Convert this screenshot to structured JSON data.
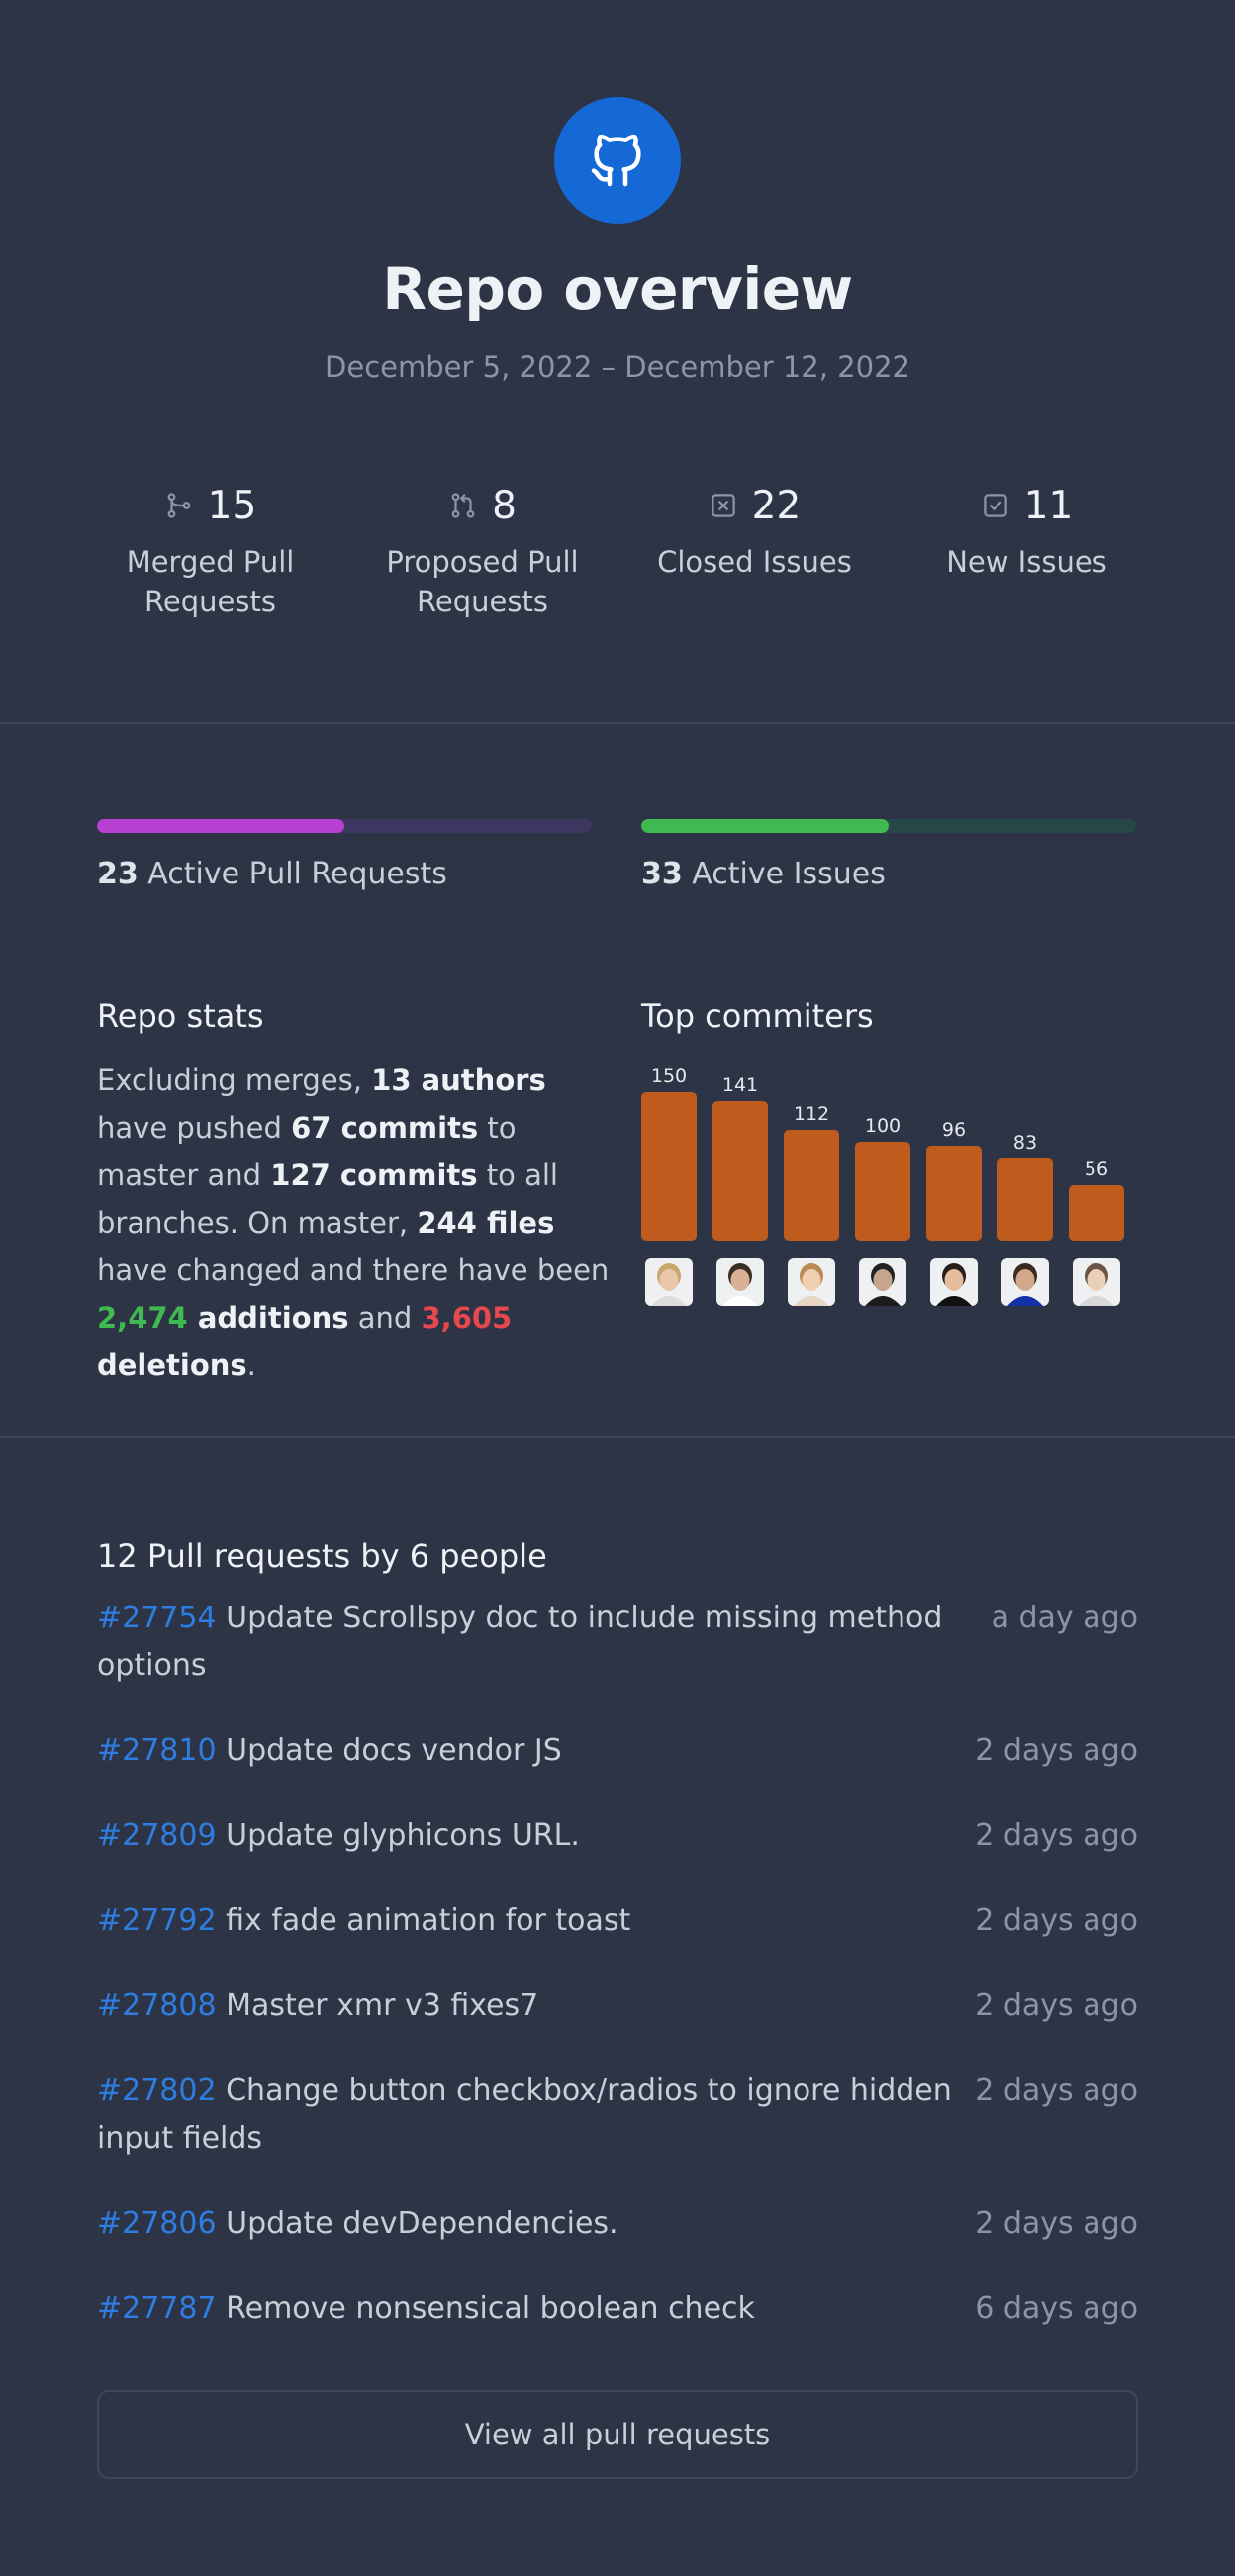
{
  "header": {
    "logo_icon": "github-icon",
    "title": "Repo overview",
    "date_range": "December 5, 2022 – December 12, 2022"
  },
  "kpis": [
    {
      "icon": "merge-icon",
      "value": "15",
      "label": "Merged Pull Requests"
    },
    {
      "icon": "pull-request-icon",
      "value": "8",
      "label": "Proposed Pull Requests"
    },
    {
      "icon": "closed-issue-icon",
      "value": "22",
      "label": "Closed Issues"
    },
    {
      "icon": "new-issue-icon",
      "value": "11",
      "label": "New Issues"
    }
  ],
  "active": {
    "pull_requests": {
      "count": "23",
      "label": "Active Pull Requests",
      "fraction": 0.5,
      "color": "#b73fd1",
      "track": "#3d3660"
    },
    "issues": {
      "count": "33",
      "label": "Active Issues",
      "fraction": 0.5,
      "color": "#3fb950",
      "track": "#264748"
    }
  },
  "repo_stats": {
    "title": "Repo stats",
    "t1": "Excluding merges, ",
    "authors": "13 authors",
    "t2": " have pushed ",
    "commits_master": "67 commits",
    "t3": " to master and ",
    "commits_all": "127 commits",
    "t4": " to all branches. On master, ",
    "files": "244 files",
    "t5": " have changed and there have been ",
    "additions_num": "2,474",
    "additions_word": " additions",
    "t6": " and ",
    "deletions_num": "3,605",
    "deletions_word": " deletions",
    "t7": "."
  },
  "top_commiters": {
    "title": "Top commiters",
    "bar_color": "#c05b1e"
  },
  "chart_data": {
    "type": "bar",
    "categories": [
      "avatar-1",
      "avatar-2",
      "avatar-3",
      "avatar-4",
      "avatar-5",
      "avatar-6",
      "avatar-7"
    ],
    "values": [
      150,
      141,
      112,
      100,
      96,
      83,
      56
    ],
    "title": "Top commiters",
    "xlabel": "",
    "ylabel": "",
    "ylim": [
      0,
      150
    ],
    "grid": false
  },
  "pull_requests": {
    "title": "12 Pull requests by 6 people",
    "items": [
      {
        "number": "#27754",
        "title": " Update Scrollspy doc to include missing method options",
        "time": "a day ago"
      },
      {
        "number": "#27810",
        "title": " Update docs vendor JS",
        "time": "2 days ago"
      },
      {
        "number": "#27809",
        "title": " Update glyphicons URL.",
        "time": "2 days ago"
      },
      {
        "number": "#27792",
        "title": " fix fade animation for toast",
        "time": "2 days ago"
      },
      {
        "number": "#27808",
        "title": " Master xmr v3 fixes7",
        "time": "2 days ago"
      },
      {
        "number": "#27802",
        "title": " Change button checkbox/radios to ignore hidden input fields",
        "time": "2 days ago"
      },
      {
        "number": "#27806",
        "title": " Update devDependencies.",
        "time": "2 days ago"
      },
      {
        "number": "#27787",
        "title": " Remove nonsensical boolean check",
        "time": "6 days ago"
      }
    ],
    "view_all_label": "View all pull requests"
  }
}
